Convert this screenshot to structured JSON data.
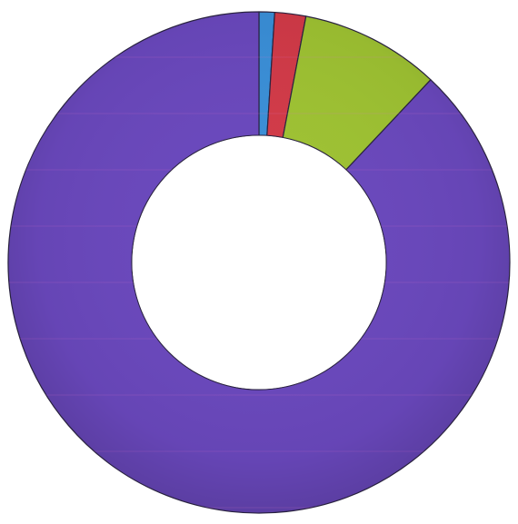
{
  "chart_data": {
    "type": "pie",
    "variant": "donut",
    "title": "",
    "legend": "none",
    "slices": [
      {
        "value": 1,
        "color": "#3a8fd8"
      },
      {
        "value": 2,
        "color": "#d23a48"
      },
      {
        "value": 9,
        "color": "#9ec232"
      },
      {
        "value": 88,
        "color": "#6a48bd"
      }
    ]
  }
}
